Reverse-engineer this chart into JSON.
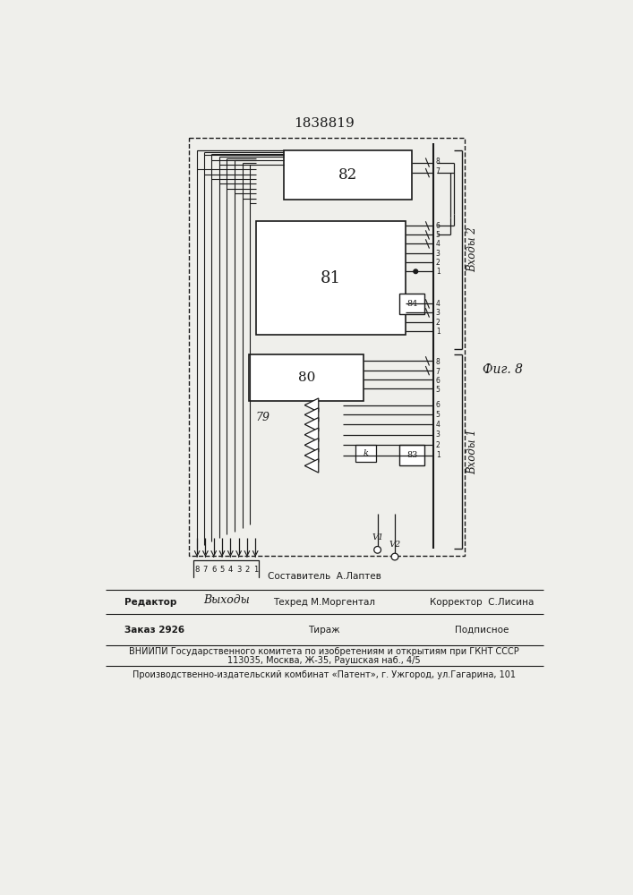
{
  "title": "1838819",
  "fig_label": "Фиг. 8",
  "background_color": "#efefeb",
  "line_color": "#1a1a1a",
  "vhody2_label": "Входы 2",
  "vhody1_label": "Входы 1",
  "vyhody_label": "Выходы",
  "v1_label": "V1",
  "v2_label": "V2",
  "editor_line1": "Составитель  А.Лаптев",
  "editor_line2": "Техред М.Моргентал",
  "editor_left": "Редактор",
  "editor_right": "Корректор  С.Лисина",
  "zakaz": "Заказ 2926",
  "tirazh": "Тираж",
  "podpisnoe": "Подписное",
  "vniip1": "ВНИИПИ Государственного комитета по изобретениям и открытиям при ГКНТ СССР",
  "vniip2": "113035, Москва, Ж-35, Раушская наб., 4/5",
  "patent_line": "Производственно-издательский комбинат «Патент», г. Ужгород, ул.Гагарина, 101"
}
